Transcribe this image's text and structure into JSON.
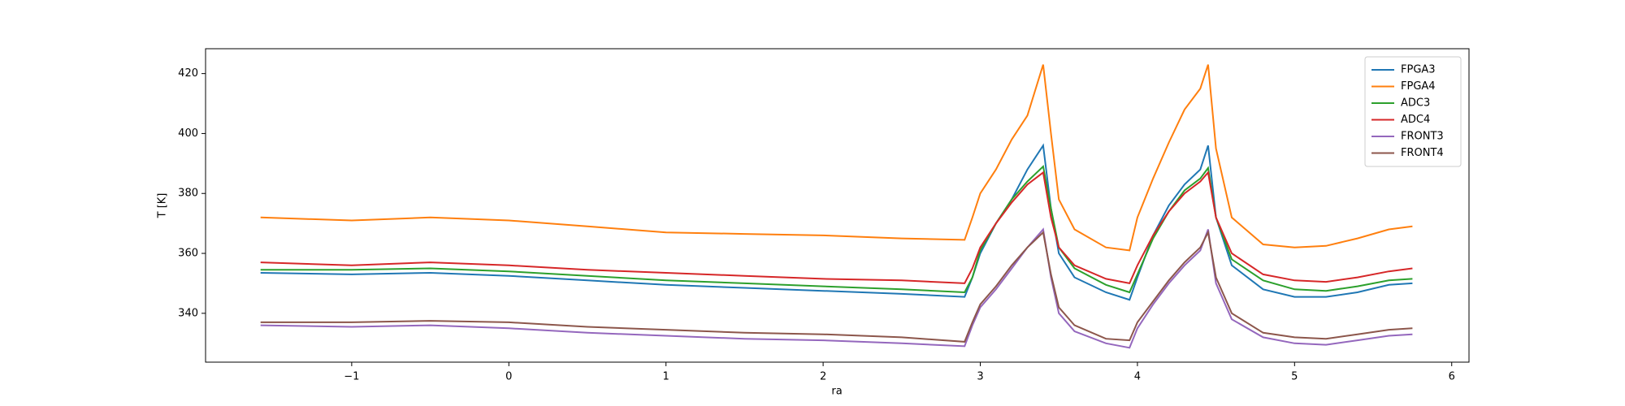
{
  "chart_data": {
    "type": "line",
    "x_label": "ra",
    "y_label": "T [K]",
    "x": [
      -1.58,
      -1,
      -0.5,
      0,
      0.5,
      1,
      1.5,
      2,
      2.5,
      2.9,
      2.95,
      3.0,
      3.1,
      3.2,
      3.3,
      3.4,
      3.45,
      3.5,
      3.6,
      3.8,
      3.95,
      4.0,
      4.1,
      4.2,
      4.3,
      4.4,
      4.45,
      4.5,
      4.6,
      4.8,
      5.0,
      5.2,
      5.4,
      5.6,
      5.75
    ],
    "series": [
      {
        "name": "FPGA3",
        "color": "#1f77b4",
        "values": [
          353.5,
          353,
          353.5,
          352.5,
          351,
          349.5,
          348.5,
          347.5,
          346.5,
          345.5,
          352,
          360,
          370,
          378,
          388,
          396,
          375,
          360,
          352,
          347,
          344.5,
          352,
          366,
          376,
          383,
          388,
          396,
          372,
          356,
          348,
          345.5,
          345.5,
          347,
          349.5,
          350
        ]
      },
      {
        "name": "FPGA4",
        "color": "#ff7f0e",
        "values": [
          372,
          371,
          372,
          371,
          369,
          367,
          366.5,
          366,
          365,
          364.5,
          372,
          380,
          388,
          398,
          406,
          423,
          400,
          378,
          368,
          362,
          361,
          372,
          385,
          397,
          408,
          415,
          423,
          395,
          372,
          363,
          362,
          362.5,
          365,
          368,
          369
        ]
      },
      {
        "name": "ADC3",
        "color": "#2ca02c",
        "values": [
          354.5,
          354.5,
          355,
          354,
          352.5,
          351,
          350,
          349,
          348,
          347,
          352,
          361,
          370,
          378,
          384,
          389,
          375,
          362,
          355,
          349.5,
          347,
          353,
          365,
          374,
          381,
          385,
          388.5,
          372,
          358,
          351,
          348,
          347.5,
          349,
          351,
          351.5
        ]
      },
      {
        "name": "ADC4",
        "color": "#d62728",
        "values": [
          357,
          356,
          357,
          356,
          354.5,
          353.5,
          352.5,
          351.5,
          351,
          350,
          355,
          362,
          370,
          377,
          383,
          387,
          372,
          362,
          356,
          351.5,
          350,
          356,
          366,
          374,
          380,
          384,
          387,
          372,
          360,
          353,
          351,
          350.5,
          352,
          354,
          355
        ]
      },
      {
        "name": "FRONT3",
        "color": "#9467bd",
        "values": [
          336,
          335.5,
          336,
          335,
          333.5,
          332.5,
          331.5,
          331,
          330,
          329,
          336,
          342,
          348,
          355,
          362,
          368,
          352,
          340,
          334,
          330,
          328.5,
          335,
          343,
          350,
          356,
          361,
          368,
          350,
          338,
          332,
          330,
          329.5,
          331,
          332.5,
          333
        ]
      },
      {
        "name": "FRONT4",
        "color": "#8c564b",
        "values": [
          337,
          337,
          337.5,
          337,
          335.5,
          334.5,
          333.5,
          333,
          332,
          330.5,
          337,
          343,
          349,
          356,
          362,
          367,
          353,
          342,
          336,
          331.5,
          331,
          337,
          344,
          351,
          357,
          362,
          367,
          352,
          340,
          333.5,
          332,
          331.5,
          333,
          334.5,
          335
        ]
      }
    ],
    "xlim": [
      -1.93,
      6.11
    ],
    "xticks": [
      {
        "value": -1,
        "label": "−1"
      },
      0,
      1,
      2,
      3,
      4,
      5,
      6
    ],
    "ylim": [
      323.7,
      428.3
    ],
    "yticks": [
      340,
      360,
      380,
      400,
      420
    ],
    "legend": "upper right"
  }
}
